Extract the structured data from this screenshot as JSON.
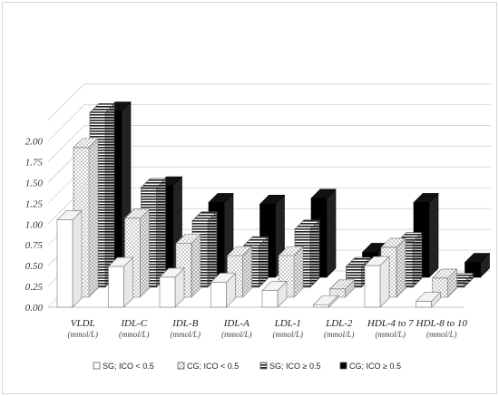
{
  "chart_data": {
    "type": "bar",
    "style": "3d-clustered",
    "categories": [
      {
        "name": "VLDL",
        "unit": "(mmol/L)"
      },
      {
        "name": "IDL-C",
        "unit": "(mmol/L)"
      },
      {
        "name": "IDL-B",
        "unit": "(mmol/L)"
      },
      {
        "name": "IDL-A",
        "unit": "(mmol/L)"
      },
      {
        "name": "LDL-1",
        "unit": "(mmol/L)"
      },
      {
        "name": "LDL-2",
        "unit": "(mmol/L)"
      },
      {
        "name": "HDL-4 to 7",
        "unit": "(mmol/L)"
      },
      {
        "name": "HDL-8 to 10",
        "unit": "(mmol/L)"
      }
    ],
    "series": [
      {
        "name": "SG; ICO < 0.5",
        "pattern": "white",
        "values": [
          1.05,
          0.49,
          0.36,
          0.3,
          0.2,
          0.03,
          0.5,
          0.07
        ]
      },
      {
        "name": "CG; ICO < 0.5",
        "pattern": "dots",
        "values": [
          1.8,
          0.95,
          0.65,
          0.5,
          0.5,
          0.1,
          0.6,
          0.23
        ]
      },
      {
        "name": "SG;  ICO ≥ 0.5",
        "pattern": "stripes",
        "values": [
          2.1,
          1.2,
          0.8,
          0.5,
          0.7,
          0.25,
          0.55,
          0.06
        ]
      },
      {
        "name": "CG;  ICO ≥ 0.5",
        "pattern": "black",
        "values": [
          2.0,
          1.1,
          0.9,
          0.88,
          0.95,
          0.3,
          0.9,
          0.18
        ]
      }
    ],
    "y_ticks": [
      "0.00",
      "0.25",
      "0.50",
      "0.75",
      "1.00",
      "1.25",
      "1.50",
      "1.75",
      "2.00"
    ],
    "ylim": [
      0,
      2.25
    ],
    "grid": true,
    "legend_position": "bottom",
    "title": "",
    "xlabel": "",
    "ylabel": "",
    "colors": {
      "white": "#ffffff",
      "dots_bg": "#ffffff",
      "stripes_fg": "#222222",
      "black": "#000000",
      "edge": "#555555",
      "grid": "#d9d9d9"
    }
  }
}
